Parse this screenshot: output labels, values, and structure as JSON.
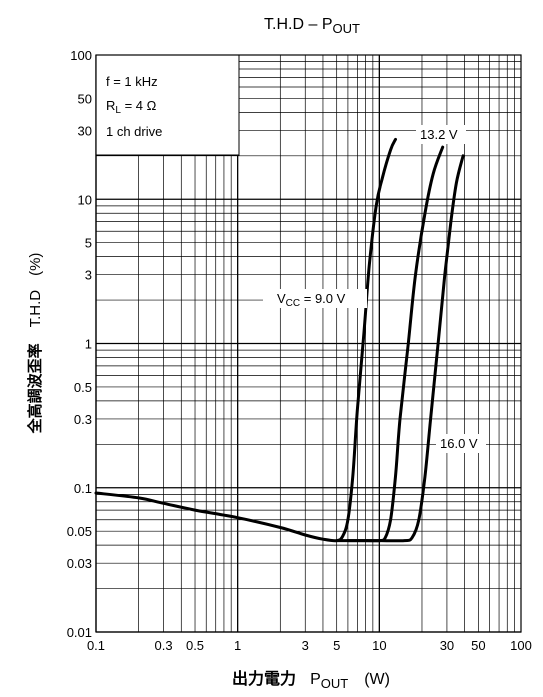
{
  "chart_data": {
    "type": "line",
    "title": {
      "main": "T.H.D – P",
      "sub": "OUT"
    },
    "xlabel": {
      "jp": "出力電力",
      "main": "P",
      "sub": "OUT",
      "unit": "(W)"
    },
    "ylabel": {
      "jp": "全高調波歪率",
      "main": "T.H.D",
      "unit": "(%)"
    },
    "x_scale": "log",
    "y_scale": "log",
    "xlim": [
      0.1,
      100
    ],
    "ylim": [
      0.01,
      100
    ],
    "x_ticks": [
      {
        "v": 0.1,
        "label": "0.1"
      },
      {
        "v": 0.3,
        "label": "0.3"
      },
      {
        "v": 0.5,
        "label": "0.5"
      },
      {
        "v": 1,
        "label": "1"
      },
      {
        "v": 3,
        "label": "3"
      },
      {
        "v": 5,
        "label": "5"
      },
      {
        "v": 10,
        "label": "10"
      },
      {
        "v": 30,
        "label": "30"
      },
      {
        "v": 50,
        "label": "50"
      },
      {
        "v": 100,
        "label": "100"
      }
    ],
    "y_ticks": [
      {
        "v": 0.01,
        "label": "0.01"
      },
      {
        "v": 0.03,
        "label": "0.03"
      },
      {
        "v": 0.05,
        "label": "0.05"
      },
      {
        "v": 0.1,
        "label": "0.1"
      },
      {
        "v": 0.3,
        "label": "0.3"
      },
      {
        "v": 0.5,
        "label": "0.5"
      },
      {
        "v": 1,
        "label": "1"
      },
      {
        "v": 3,
        "label": "3"
      },
      {
        "v": 5,
        "label": "5"
      },
      {
        "v": 10,
        "label": "10"
      },
      {
        "v": 30,
        "label": "30"
      },
      {
        "v": 50,
        "label": "50"
      },
      {
        "v": 100,
        "label": "100"
      }
    ],
    "grid": true,
    "conditions": {
      "freq": "f = 1 kHz",
      "load_main": "R",
      "load_sub": "L",
      "load_value": " = 4 Ω",
      "drive": "1 ch drive"
    },
    "series": [
      {
        "label_main": "V",
        "label_sub": "CC",
        "label_value": " = 9.0 V",
        "points": [
          [
            0.1,
            0.092
          ],
          [
            0.2,
            0.085
          ],
          [
            0.3,
            0.078
          ],
          [
            0.5,
            0.07
          ],
          [
            1,
            0.062
          ],
          [
            2,
            0.053
          ],
          [
            3,
            0.047
          ],
          [
            4,
            0.044
          ],
          [
            5,
            0.043
          ],
          [
            5.5,
            0.046
          ],
          [
            6,
            0.06
          ],
          [
            6.5,
            0.12
          ],
          [
            7,
            0.35
          ],
          [
            7.8,
            1.2
          ],
          [
            8.5,
            3.5
          ],
          [
            9.5,
            9
          ],
          [
            10.5,
            14
          ],
          [
            12,
            22
          ],
          [
            13,
            26
          ]
        ]
      },
      {
        "label_main": "13.2 V",
        "points": [
          [
            5,
            0.043
          ],
          [
            8,
            0.043
          ],
          [
            10,
            0.043
          ],
          [
            11,
            0.045
          ],
          [
            12,
            0.06
          ],
          [
            13,
            0.12
          ],
          [
            14,
            0.3
          ],
          [
            16,
            1
          ],
          [
            18,
            3
          ],
          [
            21,
            8
          ],
          [
            24,
            15
          ],
          [
            28,
            23
          ]
        ]
      },
      {
        "label_main": "16.0 V",
        "points": [
          [
            6,
            0.043
          ],
          [
            10,
            0.043
          ],
          [
            15,
            0.043
          ],
          [
            17,
            0.045
          ],
          [
            19,
            0.06
          ],
          [
            21,
            0.12
          ],
          [
            23,
            0.3
          ],
          [
            26,
            1
          ],
          [
            29,
            3
          ],
          [
            32,
            7
          ],
          [
            35,
            13
          ],
          [
            39,
            20
          ]
        ]
      }
    ]
  }
}
